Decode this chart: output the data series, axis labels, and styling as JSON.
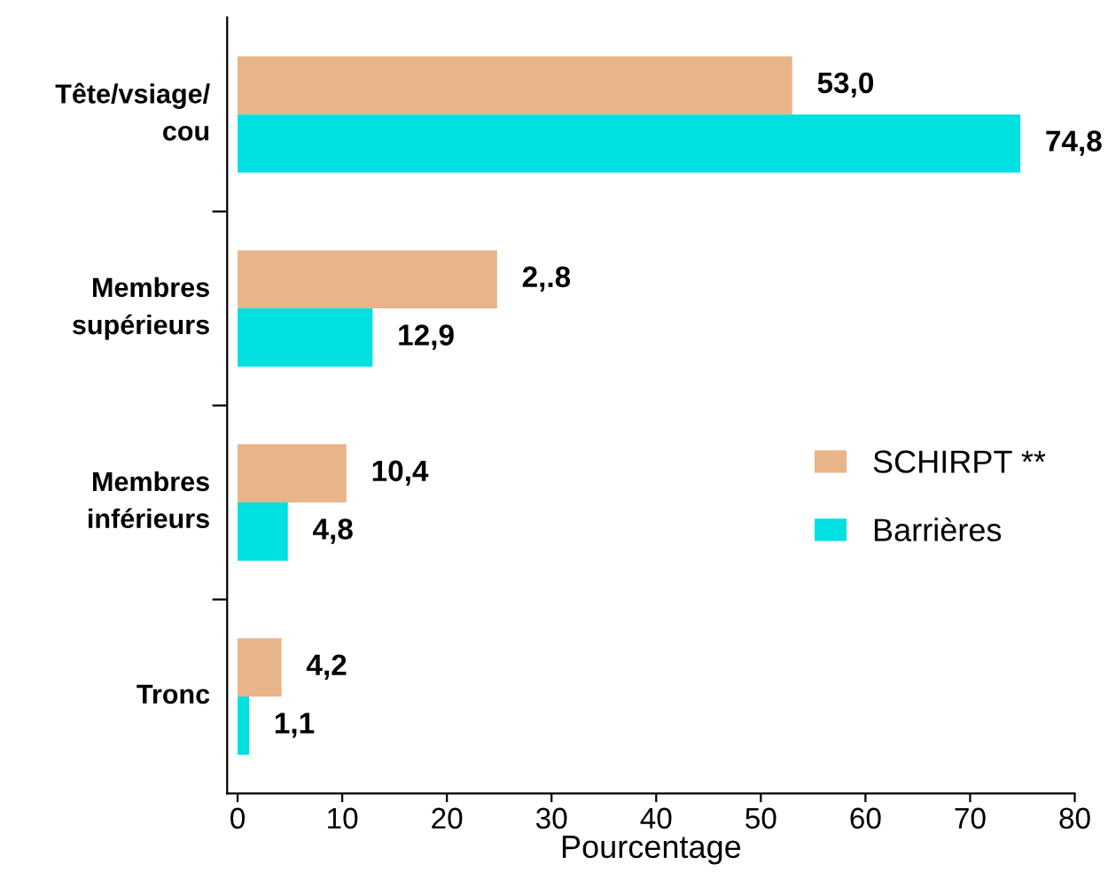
{
  "chart_data": {
    "type": "bar",
    "orientation": "horizontal",
    "xlabel": "Pourcentage",
    "categories": [
      "Tête/vsiage/\ncou",
      "Membres\nsupérieurs",
      "Membres\ninférieurs",
      "Tronc"
    ],
    "series": [
      {
        "name": "SCHIRPT **",
        "color": "#e8b48a",
        "values": [
          53.0,
          24.8,
          10.4,
          4.2
        ],
        "value_labels": [
          "53,0",
          "2,.8",
          "10,4",
          "4,2"
        ]
      },
      {
        "name": "Barrières",
        "color": "#00e0e0",
        "values": [
          74.8,
          12.9,
          4.8,
          1.1
        ],
        "value_labels": [
          "74,8",
          "12,9",
          "4,8",
          "1,1"
        ]
      }
    ],
    "xlim": [
      -1,
      80
    ],
    "xticks": [
      0,
      10,
      20,
      30,
      40,
      50,
      60,
      70,
      80
    ],
    "grid": false,
    "legend": "right"
  }
}
